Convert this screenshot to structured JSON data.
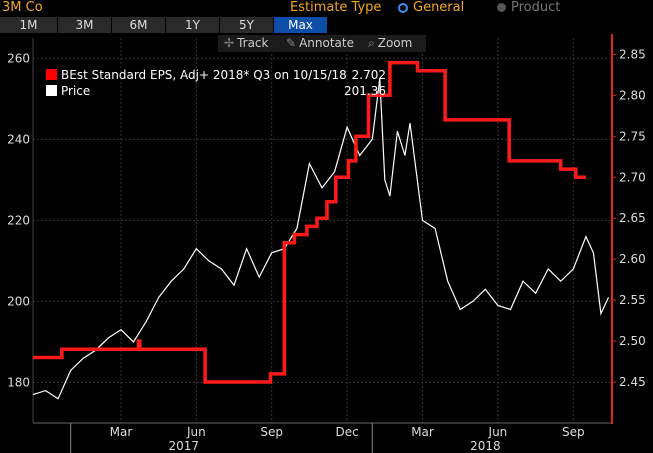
{
  "header": {
    "title": "3M Co",
    "estimate_type_label": "Estimate Type",
    "options": [
      {
        "label": "General",
        "selected": true
      },
      {
        "label": "Product",
        "selected": false
      }
    ]
  },
  "tabs": [
    {
      "label": "1M",
      "active": false
    },
    {
      "label": "3M",
      "active": false
    },
    {
      "label": "6M",
      "active": false
    },
    {
      "label": "1Y",
      "active": false
    },
    {
      "label": "5Y",
      "active": false
    },
    {
      "label": "Max",
      "active": true
    }
  ],
  "toolbar": {
    "track_label": "Track",
    "annotate_label": "Annotate",
    "zoom_label": "Zoom",
    "icons": [
      "crosshair-icon",
      "pencil-icon",
      "magnifier-icon"
    ]
  },
  "legend": [
    {
      "name": "BEst Standard EPS, Adj+ 2018* Q3 on 10/15/18",
      "value": "2.702",
      "color": "#ff0000"
    },
    {
      "name": "Price",
      "value": "201.36",
      "color": "#ffffff"
    }
  ],
  "chart_data": {
    "type": "line",
    "x_unit": "months since 2016-11-15",
    "xlim": [
      0,
      23
    ],
    "left_axis": {
      "ylim": [
        170,
        265
      ],
      "ticks": [
        180,
        200,
        220,
        240,
        260
      ]
    },
    "right_axis": {
      "ylim": [
        2.4,
        2.87
      ],
      "ticks": [
        2.45,
        2.5,
        2.55,
        2.6,
        2.65,
        2.7,
        2.75,
        2.8,
        2.85
      ]
    },
    "x_month_labels": [
      {
        "x": 3.5,
        "label": "Mar"
      },
      {
        "x": 6.5,
        "label": "Jun"
      },
      {
        "x": 9.5,
        "label": "Sep"
      },
      {
        "x": 12.5,
        "label": "Dec"
      },
      {
        "x": 15.5,
        "label": "Mar"
      },
      {
        "x": 18.5,
        "label": "Jun"
      },
      {
        "x": 21.5,
        "label": "Sep"
      }
    ],
    "x_year_labels": [
      {
        "x": 6.0,
        "label": "2017"
      },
      {
        "x": 18.0,
        "label": "2018"
      }
    ],
    "x_year_dividers": [
      1.5,
      13.5
    ],
    "grid": true,
    "colors": {
      "eps": "#ff1a1a",
      "price": "#ffffff",
      "grid": "#333333",
      "right_axis": "#e0241b"
    },
    "series": [
      {
        "name": "BEst Standard EPS, Adj+ 2018* Q3 on 10/15/18",
        "axis": "right",
        "step": true,
        "x": [
          0,
          1.15,
          4.2,
          4.25,
          5.3,
          6.4,
          6.85,
          9.1,
          9.45,
          9.7,
          10.0,
          10.4,
          10.9,
          11.3,
          11.7,
          12.05,
          12.55,
          12.85,
          13.35,
          14.2,
          14.65,
          15.3,
          16.05,
          16.4,
          18.45,
          18.95,
          20.1,
          20.55,
          21.0,
          21.6,
          22.0
        ],
        "y": [
          2.48,
          2.49,
          2.5,
          2.49,
          2.49,
          2.49,
          2.45,
          2.45,
          2.46,
          2.46,
          2.62,
          2.63,
          2.64,
          2.65,
          2.67,
          2.7,
          2.72,
          2.75,
          2.8,
          2.84,
          2.84,
          2.83,
          2.83,
          2.77,
          2.77,
          2.72,
          2.72,
          2.72,
          2.71,
          2.7,
          2.7
        ]
      },
      {
        "name": "Price",
        "axis": "left",
        "x": [
          0,
          0.5,
          1.0,
          1.5,
          2.0,
          2.5,
          3.0,
          3.5,
          4.0,
          4.5,
          5.0,
          5.5,
          6.0,
          6.5,
          7.0,
          7.5,
          8.0,
          8.5,
          9.0,
          9.5,
          10.0,
          10.5,
          11.0,
          11.5,
          12.0,
          12.5,
          13.0,
          13.5,
          13.8,
          14.0,
          14.2,
          14.5,
          14.8,
          15.0,
          15.5,
          16.0,
          16.5,
          17.0,
          17.5,
          18.0,
          18.5,
          19.0,
          19.5,
          20.0,
          20.5,
          21.0,
          21.5,
          22.0,
          22.3,
          22.6,
          22.9
        ],
        "y": [
          177,
          178,
          176,
          183,
          186,
          188,
          191,
          193,
          190,
          195,
          201,
          205,
          208,
          213,
          210,
          208,
          204,
          213,
          206,
          212,
          213,
          218,
          234,
          228,
          232,
          243,
          236,
          240,
          255,
          230,
          226,
          242,
          236,
          244,
          220,
          218,
          205,
          198,
          200,
          203,
          199,
          198,
          205,
          202,
          208,
          205,
          208,
          216,
          212,
          197,
          201
        ]
      }
    ]
  }
}
